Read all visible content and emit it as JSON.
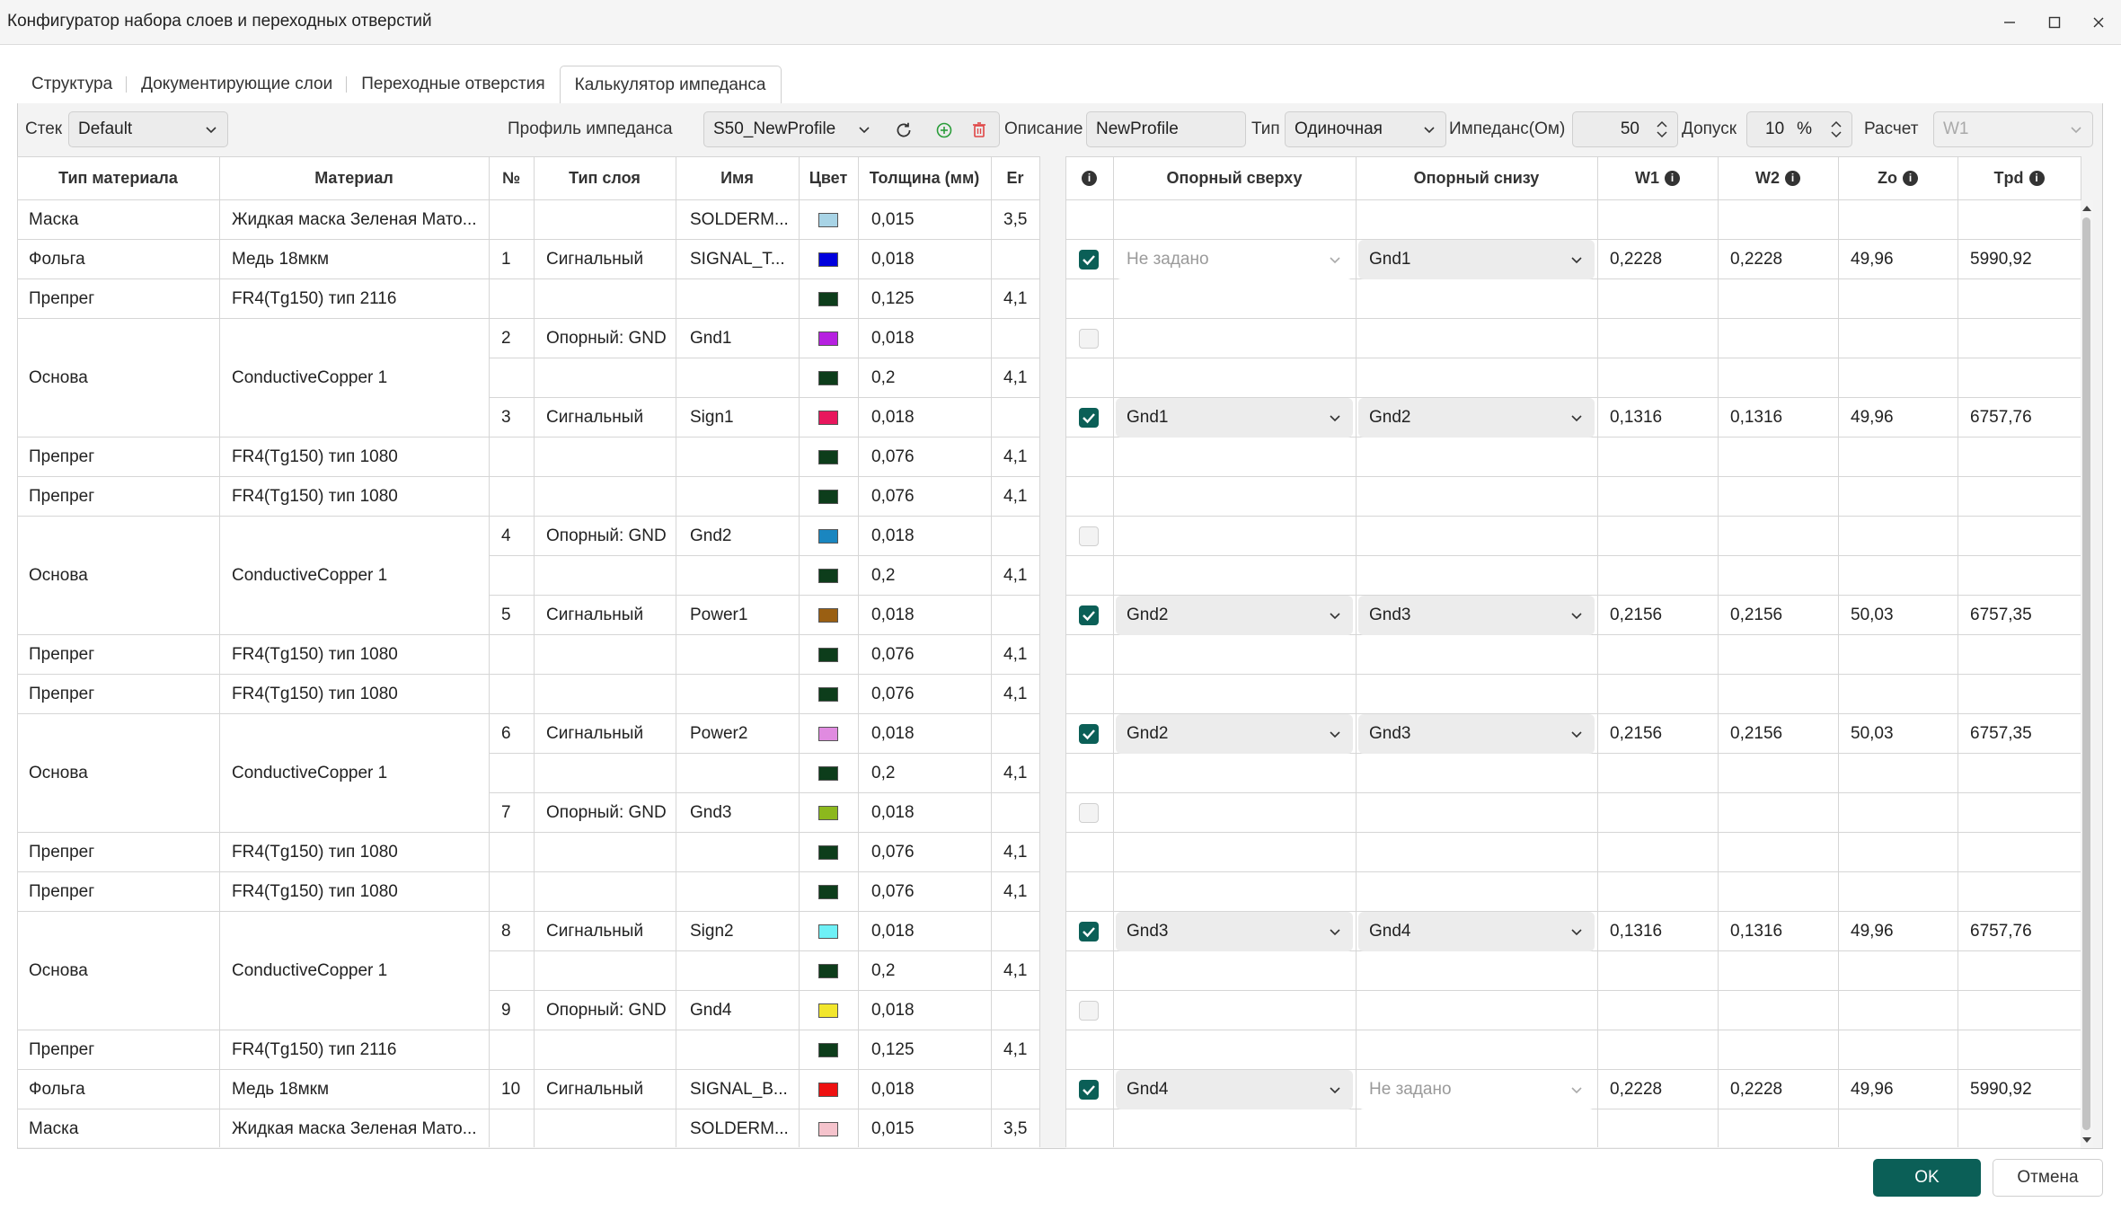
{
  "window": {
    "title": "Конфигуратор набора слоев и переходных отверстий"
  },
  "tabs": [
    {
      "label": "Структура",
      "active": false
    },
    {
      "label": "Документирующие слои",
      "active": false
    },
    {
      "label": "Переходные отверстия",
      "active": false
    },
    {
      "label": "Калькулятор импеданса",
      "active": true
    }
  ],
  "toolbar": {
    "stack_label": "Стек",
    "stack_value": "Default",
    "profile_label": "Профиль импеданса",
    "profile_value": "S50_NewProfile",
    "description_label": "Описание",
    "description_value": "NewProfile",
    "type_label": "Тип",
    "type_value": "Одиночная",
    "impedance_label": "Импеданс(Ом)",
    "impedance_value": "50",
    "tolerance_label": "Допуск",
    "tolerance_value": "10",
    "tolerance_unit": "%",
    "calc_label": "Расчет",
    "calc_value": "W1"
  },
  "columns_left": [
    "Тип материала",
    "Материал",
    "№",
    "Тип слоя",
    "Имя",
    "Цвет",
    "Толщина (мм)",
    "Er"
  ],
  "columns_right": [
    "",
    "Опорный сверху",
    "Опорный снизу",
    "W1",
    "W2",
    "Zo",
    "Tpd"
  ],
  "material_groups": [
    {
      "type": "Маска",
      "material": "Жидкая маска Зеленая Мато..."
    },
    {
      "type": "Фольга",
      "material": "Медь 18мкм"
    },
    {
      "type": "Препрег",
      "material": "FR4(Tg150) тип 2116"
    },
    {
      "type": "Основа",
      "material": "ConductiveCopper 1"
    },
    {
      "type": "Препрег",
      "material": "FR4(Tg150) тип 1080"
    },
    {
      "type": "Препрег",
      "material": "FR4(Tg150) тип 1080"
    },
    {
      "type": "Основа",
      "material": "ConductiveCopper 1"
    },
    {
      "type": "Препрег",
      "material": "FR4(Tg150) тип 1080"
    },
    {
      "type": "Препрег",
      "material": "FR4(Tg150) тип 1080"
    },
    {
      "type": "Основа",
      "material": "ConductiveCopper 1"
    },
    {
      "type": "Препрег",
      "material": "FR4(Tg150) тип 1080"
    },
    {
      "type": "Препрег",
      "material": "FR4(Tg150) тип 1080"
    },
    {
      "type": "Основа",
      "material": "ConductiveCopper 1"
    },
    {
      "type": "Препрег",
      "material": "FR4(Tg150) тип 2116"
    },
    {
      "type": "Фольга",
      "material": "Медь 18мкм"
    },
    {
      "type": "Маска",
      "material": "Жидкая маска Зеленая Мато..."
    }
  ],
  "rows": [
    {
      "num": "",
      "layer_type": "",
      "name": "SOLDERM...",
      "color": "#a8d4e6",
      "thickness": "0,015",
      "er": "3,5",
      "check": null
    },
    {
      "num": "1",
      "layer_type": "Сигнальный",
      "name": "SIGNAL_T...",
      "color": "#0000dd",
      "thickness": "0,018",
      "er": "",
      "check": true,
      "ref_top": "Не задано",
      "ref_top_placeholder": true,
      "ref_bottom": "Gnd1",
      "ref_bottom_placeholder": false,
      "w1": "0,2228",
      "w2": "0,2228",
      "zo": "49,96",
      "tpd": "5990,92"
    },
    {
      "num": "",
      "layer_type": "",
      "name": "",
      "color": "#0d3d1b",
      "thickness": "0,125",
      "er": "4,1",
      "check": null
    },
    {
      "num": "2",
      "layer_type": "Опорный: GND",
      "name": "Gnd1",
      "color": "#b620e0",
      "thickness": "0,018",
      "er": "",
      "check": false
    },
    {
      "num": "",
      "layer_type": "",
      "name": "",
      "color": "#0d3d1b",
      "thickness": "0,2",
      "er": "4,1",
      "check": null
    },
    {
      "num": "3",
      "layer_type": "Сигнальный",
      "name": "Sign1",
      "color": "#e8175d",
      "thickness": "0,018",
      "er": "",
      "check": true,
      "ref_top": "Gnd1",
      "ref_top_placeholder": false,
      "ref_bottom": "Gnd2",
      "ref_bottom_placeholder": false,
      "w1": "0,1316",
      "w2": "0,1316",
      "zo": "49,96",
      "tpd": "6757,76"
    },
    {
      "num": "",
      "layer_type": "",
      "name": "",
      "color": "#0d3d1b",
      "thickness": "0,076",
      "er": "4,1",
      "check": null
    },
    {
      "num": "",
      "layer_type": "",
      "name": "",
      "color": "#0d3d1b",
      "thickness": "0,076",
      "er": "4,1",
      "check": null
    },
    {
      "num": "4",
      "layer_type": "Опорный: GND",
      "name": "Gnd2",
      "color": "#1a86c0",
      "thickness": "0,018",
      "er": "",
      "check": false
    },
    {
      "num": "",
      "layer_type": "",
      "name": "",
      "color": "#0d3d1b",
      "thickness": "0,2",
      "er": "4,1",
      "check": null
    },
    {
      "num": "5",
      "layer_type": "Сигнальный",
      "name": "Power1",
      "color": "#9a5f12",
      "thickness": "0,018",
      "er": "",
      "check": true,
      "ref_top": "Gnd2",
      "ref_top_placeholder": false,
      "ref_bottom": "Gnd3",
      "ref_bottom_placeholder": false,
      "w1": "0,2156",
      "w2": "0,2156",
      "zo": "50,03",
      "tpd": "6757,35"
    },
    {
      "num": "",
      "layer_type": "",
      "name": "",
      "color": "#0d3d1b",
      "thickness": "0,076",
      "er": "4,1",
      "check": null
    },
    {
      "num": "",
      "layer_type": "",
      "name": "",
      "color": "#0d3d1b",
      "thickness": "0,076",
      "er": "4,1",
      "check": null
    },
    {
      "num": "6",
      "layer_type": "Сигнальный",
      "name": "Power2",
      "color": "#e08be0",
      "thickness": "0,018",
      "er": "",
      "check": true,
      "ref_top": "Gnd2",
      "ref_top_placeholder": false,
      "ref_bottom": "Gnd3",
      "ref_bottom_placeholder": false,
      "w1": "0,2156",
      "w2": "0,2156",
      "zo": "50,03",
      "tpd": "6757,35"
    },
    {
      "num": "",
      "layer_type": "",
      "name": "",
      "color": "#0d3d1b",
      "thickness": "0,2",
      "er": "4,1",
      "check": null
    },
    {
      "num": "7",
      "layer_type": "Опорный: GND",
      "name": "Gnd3",
      "color": "#8cb81d",
      "thickness": "0,018",
      "er": "",
      "check": false
    },
    {
      "num": "",
      "layer_type": "",
      "name": "",
      "color": "#0d3d1b",
      "thickness": "0,076",
      "er": "4,1",
      "check": null
    },
    {
      "num": "",
      "layer_type": "",
      "name": "",
      "color": "#0d3d1b",
      "thickness": "0,076",
      "er": "4,1",
      "check": null
    },
    {
      "num": "8",
      "layer_type": "Сигнальный",
      "name": "Sign2",
      "color": "#6ef0f6",
      "thickness": "0,018",
      "er": "",
      "check": true,
      "ref_top": "Gnd3",
      "ref_top_placeholder": false,
      "ref_bottom": "Gnd4",
      "ref_bottom_placeholder": false,
      "w1": "0,1316",
      "w2": "0,1316",
      "zo": "49,96",
      "tpd": "6757,76"
    },
    {
      "num": "",
      "layer_type": "",
      "name": "",
      "color": "#0d3d1b",
      "thickness": "0,2",
      "er": "4,1",
      "check": null
    },
    {
      "num": "9",
      "layer_type": "Опорный: GND",
      "name": "Gnd4",
      "color": "#f2e62c",
      "thickness": "0,018",
      "er": "",
      "check": false
    },
    {
      "num": "",
      "layer_type": "",
      "name": "",
      "color": "#0d3d1b",
      "thickness": "0,125",
      "er": "4,1",
      "check": null
    },
    {
      "num": "10",
      "layer_type": "Сигнальный",
      "name": "SIGNAL_B...",
      "color": "#ee1111",
      "thickness": "0,018",
      "er": "",
      "check": true,
      "ref_top": "Gnd4",
      "ref_top_placeholder": false,
      "ref_bottom": "Не задано",
      "ref_bottom_placeholder": true,
      "w1": "0,2228",
      "w2": "0,2228",
      "zo": "49,96",
      "tpd": "5990,92"
    },
    {
      "num": "",
      "layer_type": "",
      "name": "SOLDERM...",
      "color": "#f5c3cc",
      "thickness": "0,015",
      "er": "3,5",
      "check": null
    }
  ],
  "footer": {
    "ok_label": "OK",
    "cancel_label": "Отмена"
  },
  "colors": {
    "accent": "#0b5f57",
    "delete_icon": "#e04545",
    "add_icon": "#2a9d3a"
  }
}
